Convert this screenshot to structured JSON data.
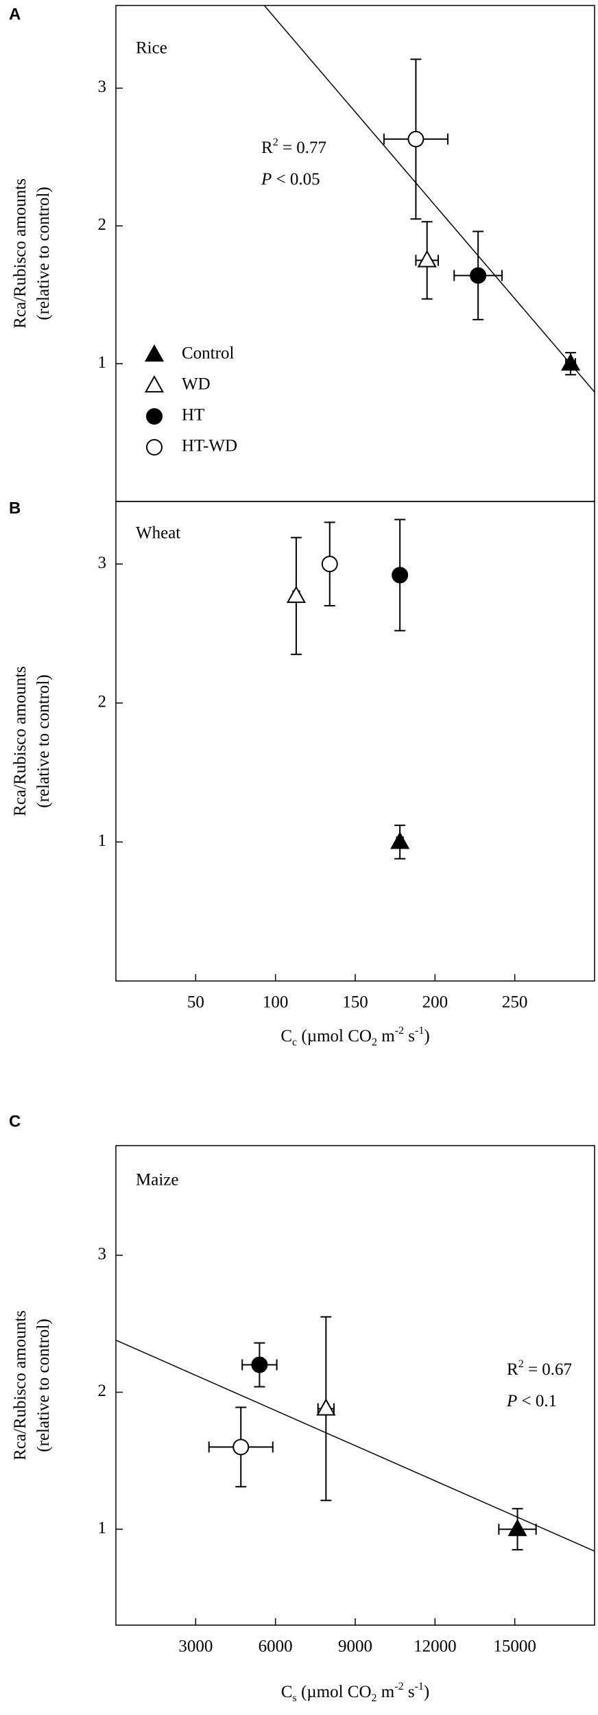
{
  "chart_data": [
    {
      "type": "scatter",
      "panel_label": "A",
      "title": "Rice",
      "ylabel": [
        "Rca/Rubisco amounts",
        "(relative to control)"
      ],
      "xlim": [
        0,
        300
      ],
      "ylim": [
        0,
        3.6
      ],
      "yticks": [
        1,
        2,
        3
      ],
      "grid": false,
      "color": "#000000",
      "legend": "lower left",
      "series": [
        {
          "name": "Control",
          "marker": "triangle",
          "filled": true,
          "x": 285,
          "y": 1.0,
          "xerr": 3,
          "yerr": 0.08
        },
        {
          "name": "WD",
          "marker": "triangle",
          "filled": false,
          "x": 195,
          "y": 1.75,
          "xerr": 7,
          "yerr": 0.28
        },
        {
          "name": "HT",
          "marker": "circle",
          "filled": true,
          "x": 227,
          "y": 1.64,
          "xerr": 15,
          "yerr": 0.32
        },
        {
          "name": "HT-WD",
          "marker": "circle",
          "filled": false,
          "x": 188,
          "y": 2.63,
          "xerr": 20,
          "yerr": 0.58
        }
      ],
      "fit": {
        "x": [
          93,
          304
        ],
        "y": [
          3.6,
          0.74
        ]
      },
      "annotation": [
        [
          {
            "text": "R"
          },
          {
            "text": "2",
            "sup": true
          },
          {
            "text": " = 0.77"
          }
        ],
        [
          {
            "text": "P",
            "italic": true
          },
          {
            "text": " < 0.05"
          }
        ]
      ]
    },
    {
      "type": "scatter",
      "panel_label": "B",
      "title": "Wheat",
      "ylabel": [
        "Rca/Rubisco amounts",
        "(relative to control)"
      ],
      "xlabel": [
        {
          "text": "C"
        },
        {
          "text": "c",
          "sub": true
        },
        {
          "text": " (µmol CO"
        },
        {
          "text": "2",
          "sub": true
        },
        {
          "text": " m"
        },
        {
          "text": "-2",
          "sup": true
        },
        {
          "text": " s"
        },
        {
          "text": "-1",
          "sup": true
        },
        {
          "text": ")"
        }
      ],
      "xlim": [
        0,
        300
      ],
      "ylim": [
        0,
        3.45
      ],
      "xticks": [
        50,
        100,
        150,
        200,
        250
      ],
      "yticks": [
        1,
        2,
        3
      ],
      "grid": false,
      "color": "#000000",
      "series": [
        {
          "marker": "triangle",
          "filled": true,
          "x": 178,
          "y": 1.0,
          "xerr": 2,
          "yerr": 0.12
        },
        {
          "marker": "triangle",
          "filled": false,
          "x": 113,
          "y": 2.77,
          "xerr": 2,
          "yerr": 0.42
        },
        {
          "marker": "circle",
          "filled": true,
          "x": 178,
          "y": 2.92,
          "xerr": 2,
          "yerr": 0.4
        },
        {
          "marker": "circle",
          "filled": false,
          "x": 134,
          "y": 3.0,
          "xerr": 2,
          "yerr": 0.3
        }
      ]
    },
    {
      "type": "scatter",
      "panel_label": "C",
      "title": "Maize",
      "ylabel": [
        "Rca/Rubisco amounts",
        "(relative to control)"
      ],
      "xlabel": [
        {
          "text": "C"
        },
        {
          "text": "s",
          "sub": true
        },
        {
          "text": " (µmol CO"
        },
        {
          "text": "2",
          "sub": true
        },
        {
          "text": " m"
        },
        {
          "text": "-2",
          "sup": true
        },
        {
          "text": " s"
        },
        {
          "text": "-1",
          "sup": true
        },
        {
          "text": ")"
        }
      ],
      "xlim": [
        0,
        18000
      ],
      "ylim": [
        0.3,
        3.8
      ],
      "xticks": [
        3000,
        6000,
        9000,
        12000,
        15000
      ],
      "yticks": [
        1,
        2,
        3
      ],
      "grid": false,
      "color": "#000000",
      "series": [
        {
          "marker": "triangle",
          "filled": true,
          "x": 15100,
          "y": 1.0,
          "xerr": 700,
          "yerr": 0.15
        },
        {
          "marker": "triangle",
          "filled": false,
          "x": 7900,
          "y": 1.88,
          "xerr": 300,
          "yerr": 0.67
        },
        {
          "marker": "circle",
          "filled": true,
          "x": 5400,
          "y": 2.2,
          "xerr": 650,
          "yerr": 0.16
        },
        {
          "marker": "circle",
          "filled": false,
          "x": 4700,
          "y": 1.6,
          "xerr": 1200,
          "yerr": 0.29
        }
      ],
      "fit": {
        "x": [
          0,
          18000
        ],
        "y": [
          2.38,
          0.84
        ]
      },
      "annotation": [
        [
          {
            "text": "R"
          },
          {
            "text": "2",
            "sup": true
          },
          {
            "text": " = 0.67"
          }
        ],
        [
          {
            "text": "P",
            "italic": true
          },
          {
            "text": " < 0.1"
          }
        ]
      ]
    }
  ]
}
